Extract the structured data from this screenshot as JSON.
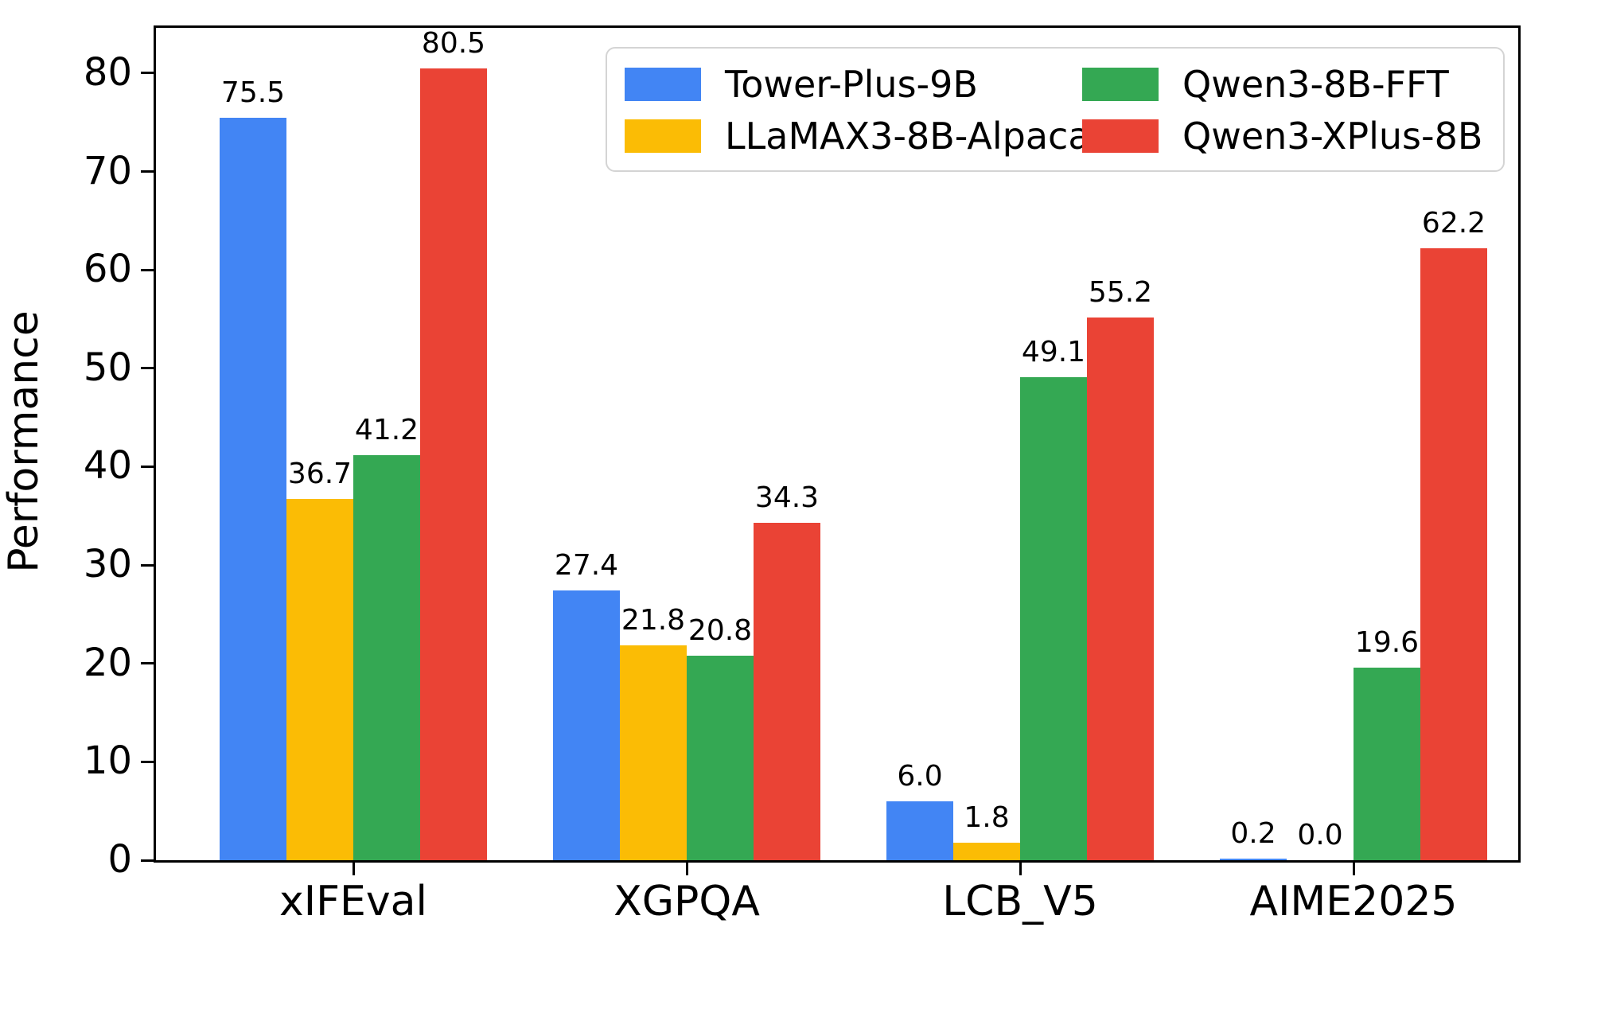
{
  "chart_data": {
    "type": "bar",
    "title": "",
    "xlabel": "",
    "ylabel": "Performance",
    "categories": [
      "xIFEval",
      "XGPQA",
      "LCB_V5",
      "AIME2025"
    ],
    "series": [
      {
        "name": "Tower-Plus-9B",
        "color": "#4285F4",
        "values": [
          75.5,
          27.4,
          6.0,
          0.2
        ]
      },
      {
        "name": "LLaMAX3-8B-Alpaca",
        "color": "#FBBC05",
        "values": [
          36.7,
          21.8,
          1.8,
          0.0
        ]
      },
      {
        "name": "Qwen3-8B-FFT",
        "color": "#34A853",
        "values": [
          41.2,
          20.8,
          49.1,
          19.6
        ]
      },
      {
        "name": "Qwen3-XPlus-8B",
        "color": "#EA4335",
        "values": [
          80.5,
          34.3,
          55.2,
          62.2
        ]
      }
    ],
    "yticks": [
      0,
      10,
      20,
      30,
      40,
      50,
      60,
      70,
      80
    ],
    "ylim": [
      0,
      84.6
    ],
    "grid": false,
    "value_labels": true,
    "value_label_decimals": 1,
    "legend_position": "upper right inside",
    "legend_columns": 2
  },
  "colors": {
    "background": "#ffffff",
    "axis": "#000000",
    "text": "#000000",
    "legend_border": "#d4d4d4"
  }
}
